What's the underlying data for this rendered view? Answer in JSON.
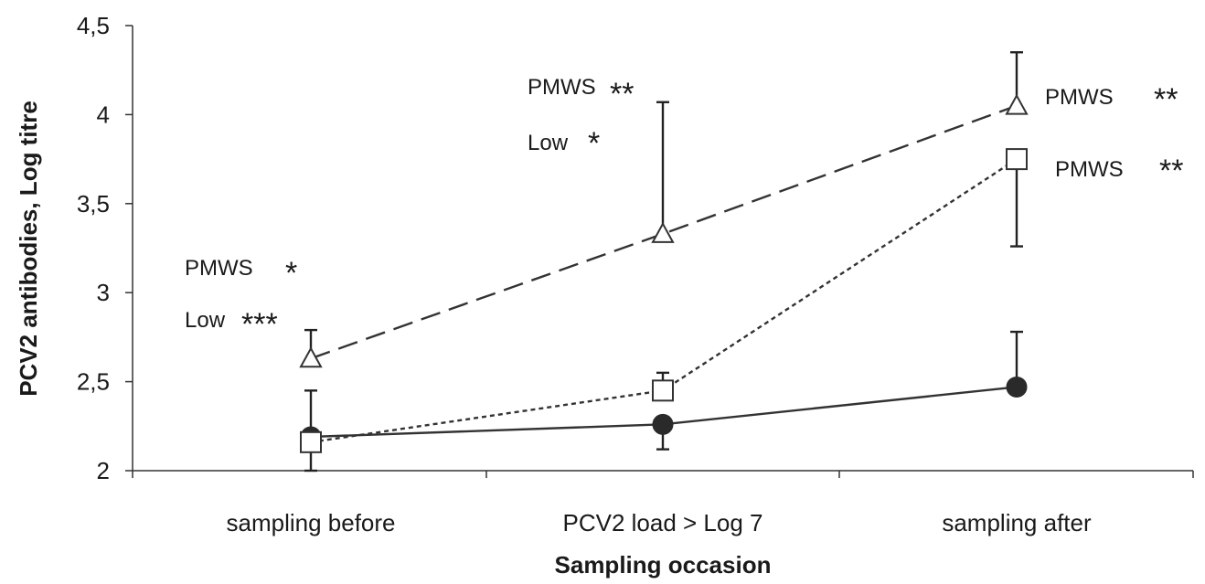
{
  "chart_data": {
    "type": "line",
    "xlabel": "Sampling occasion",
    "ylabel": "PCV2 antibodies, Log titre",
    "categories": [
      "sampling before",
      "PCV2 load > Log 7",
      "sampling after"
    ],
    "ylim": [
      2,
      4.5
    ],
    "yticks": [
      "2",
      "2,5",
      "3",
      "3,5",
      "4",
      "4,5"
    ],
    "ytick_values": [
      2,
      2.5,
      3,
      3.5,
      4,
      4.5
    ],
    "grid": false,
    "legend": "none",
    "series": [
      {
        "marker": "triangle-open",
        "line_style": "dashed",
        "color": "#333333",
        "values": [
          2.63,
          3.33,
          4.05
        ],
        "error_upper": [
          2.79,
          4.07,
          4.35
        ],
        "error_lower": [
          null,
          null,
          null
        ]
      },
      {
        "marker": "square-open",
        "line_style": "dotted",
        "color": "#333333",
        "values": [
          2.16,
          2.45,
          3.75
        ],
        "error_upper": [
          null,
          2.55,
          null
        ],
        "error_lower": [
          2.0,
          null,
          3.26
        ]
      },
      {
        "marker": "circle-filled",
        "line_style": "solid",
        "color": "#333333",
        "values": [
          2.19,
          2.26,
          2.47
        ],
        "error_upper": [
          2.45,
          null,
          2.78
        ],
        "error_lower": [
          null,
          2.12,
          null
        ]
      }
    ],
    "annotations": [
      {
        "text": "PMWS",
        "stars": "*"
      },
      {
        "text": "Low",
        "stars": "***"
      },
      {
        "text": "PMWS",
        "stars": "**"
      },
      {
        "text": "Low",
        "stars": "*"
      },
      {
        "text": "PMWS",
        "stars": "**"
      },
      {
        "text": "PMWS",
        "stars": "**"
      }
    ]
  }
}
